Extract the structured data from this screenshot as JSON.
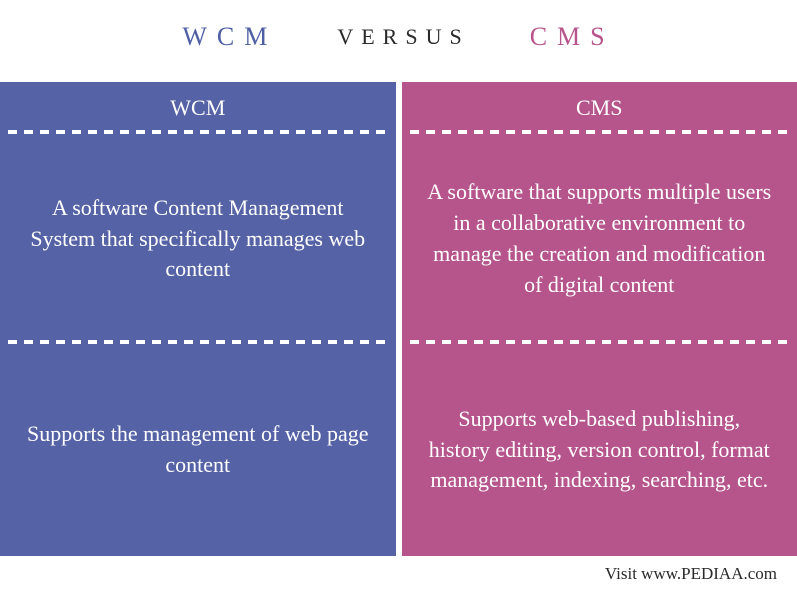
{
  "header": {
    "left_label": "WCM",
    "left_color": "#4f5fa6",
    "middle_label": "VERSUS",
    "middle_color": "#2a2a2a",
    "right_label": "CMS",
    "right_color": "#b8558d"
  },
  "table": {
    "left_column": {
      "background_color": "#5562a5",
      "header": "WCM",
      "row1": "A software Content Management System that specifically manages web content",
      "row2": "Supports the management of web page content"
    },
    "right_column": {
      "background_color": "#b5558c",
      "header": "CMS",
      "row1": "A software that supports multiple users in a collaborative environment to manage the creation and modification of digital content",
      "row2": "Supports web-based publishing, history editing, version control, format management, indexing, searching, etc."
    }
  },
  "footer": {
    "text": "Visit www.PEDIAA.com"
  }
}
